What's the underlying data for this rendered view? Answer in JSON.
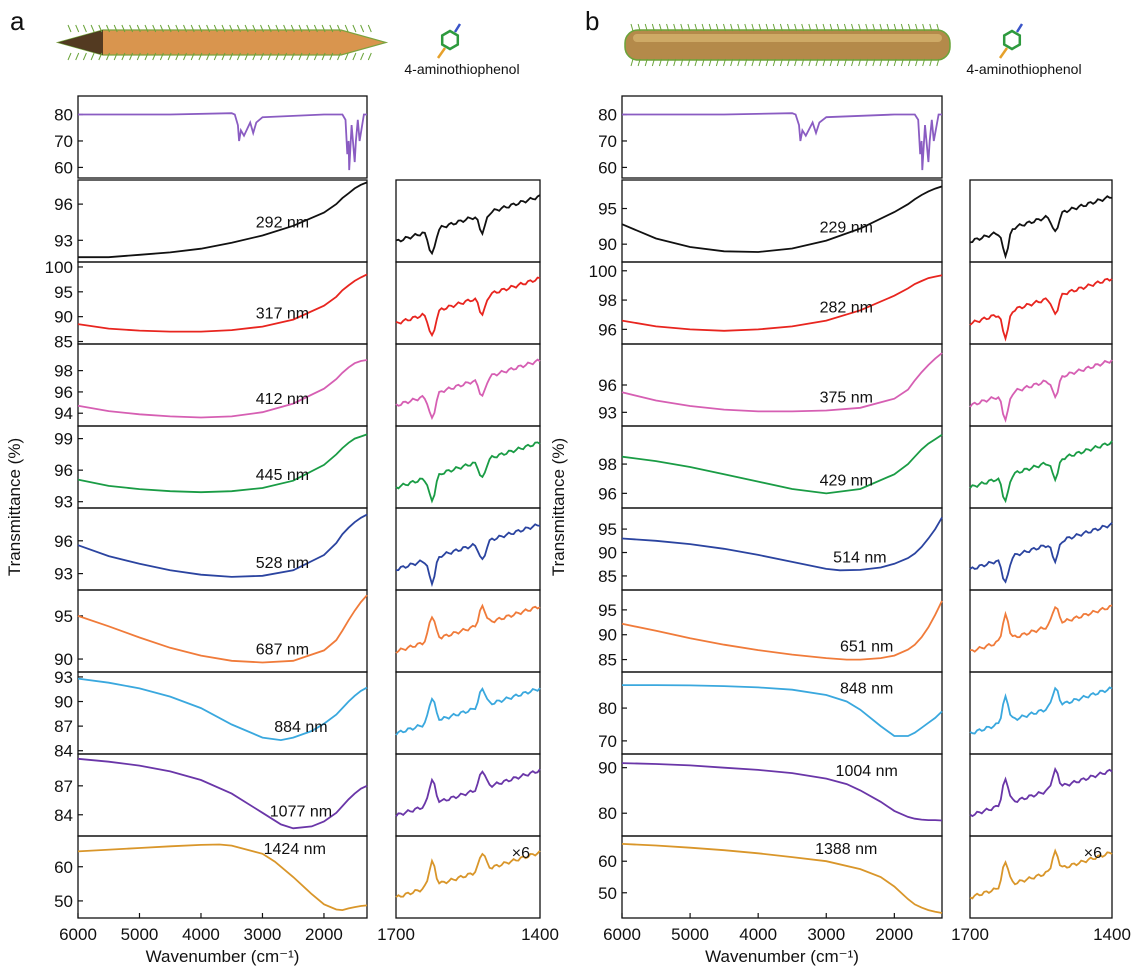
{
  "panels": [
    {
      "letter": "a",
      "molecule_label": "4-aminothiophenol",
      "ylabel": "Transmittance (%)",
      "main_xlabel": "Wavenumber (cm⁻¹)",
      "main_xticks": [
        "6000",
        "5000",
        "4000",
        "3000",
        "2000"
      ],
      "inset_xticks": [
        "1700",
        "1400"
      ],
      "inset_note": "×6"
    },
    {
      "letter": "b",
      "molecule_label": "4-aminothiophenol",
      "ylabel": "Transmittance (%)",
      "main_xlabel": "Wavenumber (cm⁻¹)",
      "main_xticks": [
        "6000",
        "5000",
        "4000",
        "3000",
        "2000"
      ],
      "inset_xticks": [
        "1700",
        "1400"
      ],
      "inset_note": "×6"
    }
  ],
  "chart_data": [
    {
      "type": "line",
      "panel": "a",
      "xlabel": "Wavenumber (cm⁻¹)",
      "ylabel": "Transmittance (%)",
      "xlim": [
        6000,
        1300
      ],
      "xticks": [
        6000,
        5000,
        4000,
        3000,
        2000
      ],
      "series": [
        {
          "color": "#8a5cc2",
          "ylim": [
            56,
            87
          ],
          "yticks": [
            60,
            70,
            80
          ],
          "kind": "reference",
          "x": [
            6000,
            4500,
            3500,
            3450,
            3400,
            3380,
            3350,
            3300,
            3200,
            3150,
            3100,
            3000,
            2000,
            1700,
            1650,
            1620,
            1600,
            1590,
            1550,
            1500,
            1480,
            1450,
            1420,
            1350,
            1300
          ],
          "y": [
            80,
            80,
            80.5,
            80,
            76,
            70,
            74,
            72,
            77,
            73,
            77,
            79,
            80,
            80,
            78,
            65,
            70,
            59,
            76,
            62,
            70,
            78,
            70,
            80,
            80
          ]
        },
        {
          "color": "#111111",
          "label": "292 nm",
          "ylim": [
            91.2,
            98
          ],
          "yticks": [
            93,
            96
          ],
          "x": [
            6000,
            5500,
            5000,
            4500,
            4000,
            3500,
            3000,
            2500,
            2000,
            1800,
            1700,
            1600,
            1500,
            1400,
            1300
          ],
          "y": [
            91.6,
            91.6,
            91.8,
            92.0,
            92.3,
            92.8,
            93.4,
            94.2,
            95.3,
            96.0,
            96.5,
            96.9,
            97.3,
            97.6,
            97.8
          ]
        },
        {
          "color": "#e8251f",
          "label": "317 nm",
          "ylim": [
            84.5,
            101
          ],
          "yticks": [
            85,
            90,
            95,
            100
          ],
          "x": [
            6000,
            5500,
            5000,
            4500,
            4000,
            3500,
            3000,
            2500,
            2000,
            1800,
            1700,
            1600,
            1500,
            1400,
            1300
          ],
          "y": [
            88.5,
            87.6,
            87.2,
            87.0,
            87.0,
            87.3,
            88.0,
            89.4,
            92.2,
            94.0,
            95.3,
            96.3,
            97.2,
            97.9,
            98.5
          ]
        },
        {
          "color": "#d65fb3",
          "label": "412 nm",
          "ylim": [
            92.8,
            100.5
          ],
          "yticks": [
            94,
            96,
            98
          ],
          "x": [
            6000,
            5500,
            5000,
            4500,
            4000,
            3500,
            3000,
            2500,
            2000,
            1800,
            1700,
            1600,
            1500,
            1400,
            1300
          ],
          "y": [
            94.7,
            94.2,
            93.9,
            93.7,
            93.6,
            93.7,
            94.1,
            94.9,
            96.3,
            97.2,
            97.8,
            98.3,
            98.7,
            98.9,
            99.0
          ]
        },
        {
          "color": "#1a9c45",
          "label": "445 nm",
          "ylim": [
            92.4,
            100.2
          ],
          "yticks": [
            93,
            96,
            99
          ],
          "x": [
            6000,
            5500,
            5000,
            4500,
            4000,
            3500,
            3000,
            2500,
            2000,
            1800,
            1700,
            1600,
            1500,
            1400,
            1300
          ],
          "y": [
            95.1,
            94.5,
            94.2,
            94.0,
            93.9,
            94.0,
            94.3,
            95.0,
            96.5,
            97.5,
            98.1,
            98.6,
            99.0,
            99.2,
            99.4
          ]
        },
        {
          "color": "#2b44a0",
          "label": "528 nm",
          "ylim": [
            91.5,
            99
          ],
          "yticks": [
            93,
            96
          ],
          "x": [
            6000,
            5500,
            5000,
            4500,
            4000,
            3500,
            3000,
            2500,
            2000,
            1800,
            1700,
            1600,
            1500,
            1400,
            1300
          ],
          "y": [
            95.6,
            94.6,
            93.9,
            93.3,
            92.9,
            92.7,
            92.8,
            93.3,
            94.7,
            95.8,
            96.6,
            97.2,
            97.7,
            98.1,
            98.4
          ]
        },
        {
          "color": "#f07b3a",
          "label": "687 nm",
          "ylim": [
            88.5,
            98
          ],
          "yticks": [
            90,
            95
          ],
          "x": [
            6000,
            5500,
            5000,
            4500,
            4000,
            3500,
            3000,
            2500,
            2000,
            1800,
            1700,
            1600,
            1500,
            1400,
            1300
          ],
          "y": [
            95.0,
            93.8,
            92.5,
            91.3,
            90.4,
            89.8,
            89.6,
            89.8,
            91.0,
            92.2,
            93.3,
            94.5,
            95.6,
            96.6,
            97.4
          ]
        },
        {
          "color": "#3aa8de",
          "label": "884 nm",
          "ylim": [
            83.6,
            93.6
          ],
          "yticks": [
            84,
            87,
            90,
            93
          ],
          "x": [
            6000,
            5500,
            5000,
            4500,
            4000,
            3500,
            3000,
            2700,
            2500,
            2200,
            2000,
            1800,
            1700,
            1600,
            1500,
            1400,
            1300
          ],
          "y": [
            92.8,
            92.3,
            91.6,
            90.6,
            89.2,
            87.2,
            85.6,
            85.3,
            85.6,
            86.4,
            87.3,
            88.4,
            89.2,
            90.0,
            90.7,
            91.3,
            91.7
          ]
        },
        {
          "color": "#6a36a8",
          "label": "1077 nm",
          "ylim": [
            81.8,
            90.3
          ],
          "yticks": [
            84,
            87
          ],
          "x": [
            6000,
            5500,
            5000,
            4500,
            4000,
            3500,
            3000,
            2700,
            2500,
            2200,
            2000,
            1800,
            1700,
            1600,
            1500,
            1400,
            1300
          ],
          "y": [
            89.8,
            89.5,
            89.1,
            88.5,
            87.6,
            86.2,
            84.2,
            83.0,
            82.6,
            82.8,
            83.3,
            84.2,
            84.9,
            85.6,
            86.2,
            86.7,
            87.0
          ]
        },
        {
          "color": "#d9962a",
          "label": "1424 nm",
          "ylim": [
            45,
            69
          ],
          "yticks": [
            50,
            60
          ],
          "x": [
            6000,
            5000,
            4500,
            4000,
            3700,
            3500,
            3000,
            2800,
            2500,
            2200,
            2000,
            1800,
            1700,
            1600,
            1500,
            1400,
            1300
          ],
          "y": [
            64.5,
            65.5,
            66.0,
            66.4,
            66.5,
            66.2,
            63.8,
            61.5,
            57.0,
            52.0,
            49.0,
            47.5,
            47.3,
            47.8,
            48.2,
            48.5,
            48.7
          ]
        }
      ]
    },
    {
      "type": "line",
      "panel": "b",
      "xlabel": "Wavenumber (cm⁻¹)",
      "ylabel": "Transmittance (%)",
      "xlim": [
        6000,
        1300
      ],
      "xticks": [
        6000,
        5000,
        4000,
        3000,
        2000
      ],
      "series": [
        {
          "color": "#8a5cc2",
          "ylim": [
            56,
            87
          ],
          "yticks": [
            60,
            70,
            80
          ],
          "kind": "reference",
          "x": [
            6000,
            4500,
            3500,
            3450,
            3400,
            3380,
            3350,
            3300,
            3200,
            3150,
            3100,
            3000,
            2000,
            1700,
            1650,
            1620,
            1600,
            1590,
            1550,
            1500,
            1480,
            1450,
            1420,
            1350,
            1300
          ],
          "y": [
            80,
            80,
            80.5,
            80,
            76,
            70,
            74,
            72,
            77,
            73,
            77,
            79,
            80,
            80,
            78,
            65,
            70,
            59,
            76,
            62,
            70,
            78,
            70,
            80,
            80
          ]
        },
        {
          "color": "#111111",
          "label": "229 nm",
          "ylim": [
            87.5,
            99
          ],
          "yticks": [
            90,
            95
          ],
          "x": [
            6000,
            5500,
            5000,
            4500,
            4000,
            3500,
            3000,
            2500,
            2000,
            1800,
            1700,
            1600,
            1500,
            1400,
            1300
          ],
          "y": [
            92.8,
            90.8,
            89.6,
            89.0,
            88.9,
            89.4,
            90.5,
            92.2,
            94.5,
            95.6,
            96.3,
            96.9,
            97.4,
            97.8,
            98.1
          ]
        },
        {
          "color": "#e8251f",
          "label": "282 nm",
          "ylim": [
            95.0,
            100.6
          ],
          "yticks": [
            96,
            98,
            100
          ],
          "x": [
            6000,
            5500,
            5000,
            4500,
            4000,
            3500,
            3000,
            2500,
            2000,
            1800,
            1700,
            1600,
            1500,
            1400,
            1300
          ],
          "y": [
            96.6,
            96.2,
            96.0,
            95.9,
            96.0,
            96.2,
            96.6,
            97.3,
            98.3,
            98.8,
            99.1,
            99.3,
            99.5,
            99.6,
            99.7
          ]
        },
        {
          "color": "#d65fb3",
          "label": "375 nm",
          "ylim": [
            91.5,
            100.5
          ],
          "yticks": [
            93,
            96
          ],
          "x": [
            6000,
            5500,
            5000,
            4500,
            4000,
            3500,
            3000,
            2500,
            2000,
            1800,
            1700,
            1600,
            1500,
            1400,
            1300
          ],
          "y": [
            95.2,
            94.3,
            93.7,
            93.3,
            93.1,
            93.1,
            93.2,
            93.5,
            94.5,
            95.5,
            96.5,
            97.4,
            98.2,
            98.9,
            99.5
          ]
        },
        {
          "color": "#1a9c45",
          "label": "429 nm",
          "ylim": [
            95.0,
            100.6
          ],
          "yticks": [
            96,
            98
          ],
          "x": [
            6000,
            5500,
            5000,
            4500,
            4000,
            3500,
            3000,
            2500,
            2000,
            1800,
            1700,
            1600,
            1500,
            1400,
            1300
          ],
          "y": [
            98.5,
            98.2,
            97.8,
            97.3,
            96.8,
            96.3,
            96.0,
            96.3,
            97.3,
            98.0,
            98.5,
            99.0,
            99.4,
            99.7,
            100.0
          ]
        },
        {
          "color": "#2b44a0",
          "label": "514 nm",
          "ylim": [
            82,
            99.5
          ],
          "yticks": [
            85,
            90,
            95
          ],
          "x": [
            6000,
            5500,
            5000,
            4500,
            4000,
            3500,
            3000,
            2800,
            2500,
            2200,
            2000,
            1800,
            1700,
            1600,
            1500,
            1400,
            1300
          ],
          "y": [
            93.0,
            92.5,
            91.8,
            90.8,
            89.5,
            88.0,
            86.5,
            86.2,
            86.3,
            86.8,
            87.6,
            88.8,
            89.8,
            91.2,
            93.0,
            95.0,
            97.5
          ]
        },
        {
          "color": "#f07b3a",
          "label": "651 nm",
          "ylim": [
            82.5,
            99
          ],
          "yticks": [
            85,
            90,
            95
          ],
          "x": [
            6000,
            5500,
            5000,
            4500,
            4000,
            3500,
            3000,
            2700,
            2500,
            2200,
            2000,
            1800,
            1700,
            1600,
            1500,
            1400,
            1300
          ],
          "y": [
            92.2,
            90.8,
            89.3,
            88.0,
            86.9,
            86.0,
            85.3,
            85.0,
            85.0,
            85.3,
            85.8,
            87.0,
            88.0,
            89.5,
            91.5,
            94.0,
            96.8
          ]
        },
        {
          "color": "#3aa8de",
          "label": "848 nm",
          "ylim": [
            66,
            91
          ],
          "yticks": [
            70,
            80
          ],
          "x": [
            6000,
            5500,
            5000,
            4500,
            4000,
            3500,
            3000,
            2700,
            2500,
            2200,
            2000,
            1800,
            1700,
            1600,
            1500,
            1400,
            1300
          ],
          "y": [
            87.0,
            87.0,
            86.9,
            86.7,
            86.3,
            85.6,
            84.0,
            82.0,
            79.5,
            74.5,
            71.5,
            71.5,
            72.5,
            74.0,
            75.5,
            77.0,
            79.0
          ]
        },
        {
          "color": "#6a36a8",
          "label": "1004 nm",
          "ylim": [
            75,
            93
          ],
          "yticks": [
            80,
            90
          ],
          "x": [
            6000,
            5500,
            5000,
            4500,
            4000,
            3500,
            3000,
            2700,
            2500,
            2200,
            2000,
            1800,
            1700,
            1600,
            1500,
            1400,
            1300
          ],
          "y": [
            91.0,
            90.8,
            90.5,
            90.0,
            89.5,
            88.8,
            87.6,
            86.4,
            85.0,
            82.5,
            80.5,
            79.2,
            78.8,
            78.6,
            78.5,
            78.5,
            78.4
          ]
        },
        {
          "color": "#d9962a",
          "label": "1388 nm",
          "ylim": [
            42,
            68
          ],
          "yticks": [
            50,
            60
          ],
          "x": [
            6000,
            5500,
            5000,
            4500,
            4000,
            3500,
            3000,
            2500,
            2200,
            2000,
            1800,
            1700,
            1600,
            1500,
            1400,
            1300
          ],
          "y": [
            65.5,
            65.0,
            64.3,
            63.5,
            62.5,
            61.3,
            60.0,
            57.5,
            55.0,
            52.0,
            48.0,
            46.3,
            45.3,
            44.5,
            44.0,
            43.6
          ]
        }
      ]
    }
  ]
}
